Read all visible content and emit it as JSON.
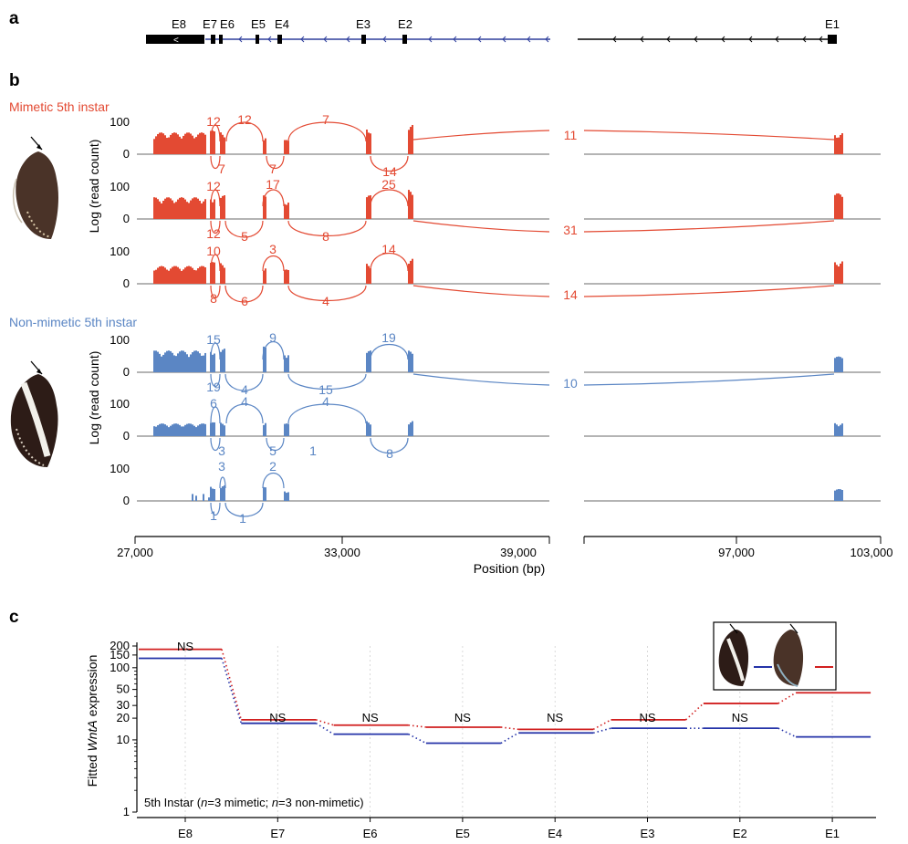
{
  "panels": {
    "a": "a",
    "b": "b",
    "c": "c"
  },
  "colors": {
    "mimetic": "#e34a33",
    "nonmimetic": "#5b86c4",
    "mimetic_c": "#d11f1f",
    "nonmimetic_c": "#2433a8",
    "axis": "#888888",
    "exon": "#000000",
    "intron_blue": "#2e3e9c"
  },
  "gene_model": {
    "exon_labels": [
      "E8",
      "E7",
      "E6",
      "E5",
      "E4",
      "E3",
      "E2",
      "E1"
    ]
  },
  "panel_b": {
    "group_mimetic": "Mimetic 5th instar",
    "group_nonmimetic": "Non-mimetic 5th instar",
    "ylabel": "Log (read count)",
    "y_ticks": [
      "100",
      "0"
    ],
    "xlabel": "Position (bp)",
    "x_ticks_left": [
      "27,000",
      "33,000",
      "39,000"
    ],
    "x_ticks_right": [
      "97,000",
      "103,000"
    ],
    "butterfly_icons": [
      "mimetic-butterfly-icon",
      "nonmimetic-butterfly-icon"
    ],
    "tracks": [
      {
        "group": "mimetic",
        "above": [
          "12",
          "12",
          "7"
        ],
        "below": [
          "7",
          "7",
          "14"
        ],
        "long_junction": "11"
      },
      {
        "group": "mimetic",
        "above": [
          "12",
          "17",
          "25"
        ],
        "below": [
          "12",
          "5",
          "8"
        ],
        "long_junction": "31"
      },
      {
        "group": "mimetic",
        "above": [
          "10",
          "3",
          "14"
        ],
        "below": [
          "8",
          "6",
          "4"
        ],
        "long_junction": "14"
      },
      {
        "group": "nonmimetic",
        "above": [
          "15",
          "9",
          "19"
        ],
        "below": [
          "19",
          "4",
          "15"
        ],
        "long_junction": "10"
      },
      {
        "group": "nonmimetic",
        "above": [
          "6",
          "4",
          "4"
        ],
        "below": [
          "3",
          "5",
          "1",
          "8"
        ],
        "long_junction": ""
      },
      {
        "group": "nonmimetic",
        "above": [
          "3",
          "2"
        ],
        "below": [
          "1",
          "1"
        ],
        "long_junction": ""
      }
    ]
  },
  "chart_data": {
    "type": "line",
    "title": "",
    "xlabel": "",
    "ylabel_prefix": "Fitted ",
    "ylabel_gene": "WntA",
    "ylabel_suffix": " expression",
    "y_scale": "log",
    "ylim": [
      1,
      200
    ],
    "y_ticks": [
      1,
      10,
      20,
      30,
      50,
      100,
      150,
      200
    ],
    "categories": [
      "E8",
      "E7",
      "E6",
      "E5",
      "E4",
      "E3",
      "E2",
      "E1"
    ],
    "series": [
      {
        "key": "mimetic",
        "values": [
          180,
          19,
          16,
          15,
          14,
          19,
          32,
          45
        ]
      },
      {
        "key": "nonmimetic",
        "values": [
          135,
          17,
          12,
          9,
          12.5,
          14.5,
          14.5,
          11
        ]
      }
    ],
    "significance": [
      "NS",
      "NS",
      "NS",
      "NS",
      "NS",
      "NS",
      "NS",
      "*"
    ],
    "annotation": {
      "prefix": "5th Instar (",
      "n1": "n",
      "mid1": "=3 mimetic; ",
      "n2": "n",
      "mid2": "=3 non-mimetic)"
    },
    "legend": {
      "position": "top-right",
      "entries": [
        "nonmimetic",
        "mimetic"
      ]
    }
  }
}
